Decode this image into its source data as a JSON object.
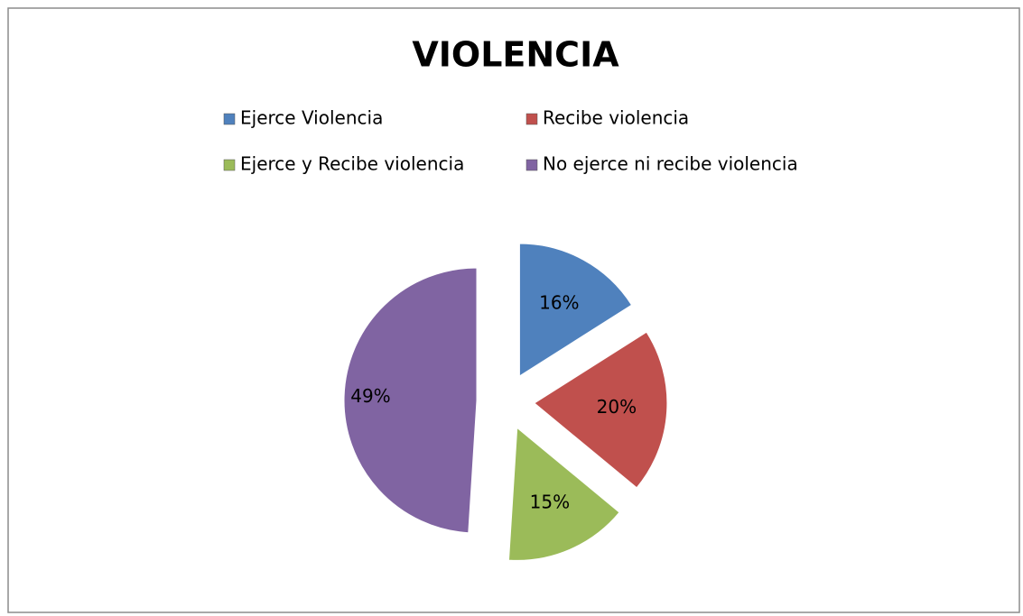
{
  "chart_data": {
    "type": "pie",
    "title": "VIOLENCIA",
    "categories": [
      "Ejerce Violencia",
      "Recibe violencia",
      "Ejerce y Recibe violencia",
      "No ejerce ni recibe violencia"
    ],
    "values": [
      16,
      20,
      15,
      49
    ],
    "value_labels": [
      "16%",
      "20%",
      "15%",
      "49%"
    ],
    "colors": [
      "#4f81bd",
      "#c0504d",
      "#9bbb59",
      "#8064a2"
    ],
    "legend": "top"
  }
}
